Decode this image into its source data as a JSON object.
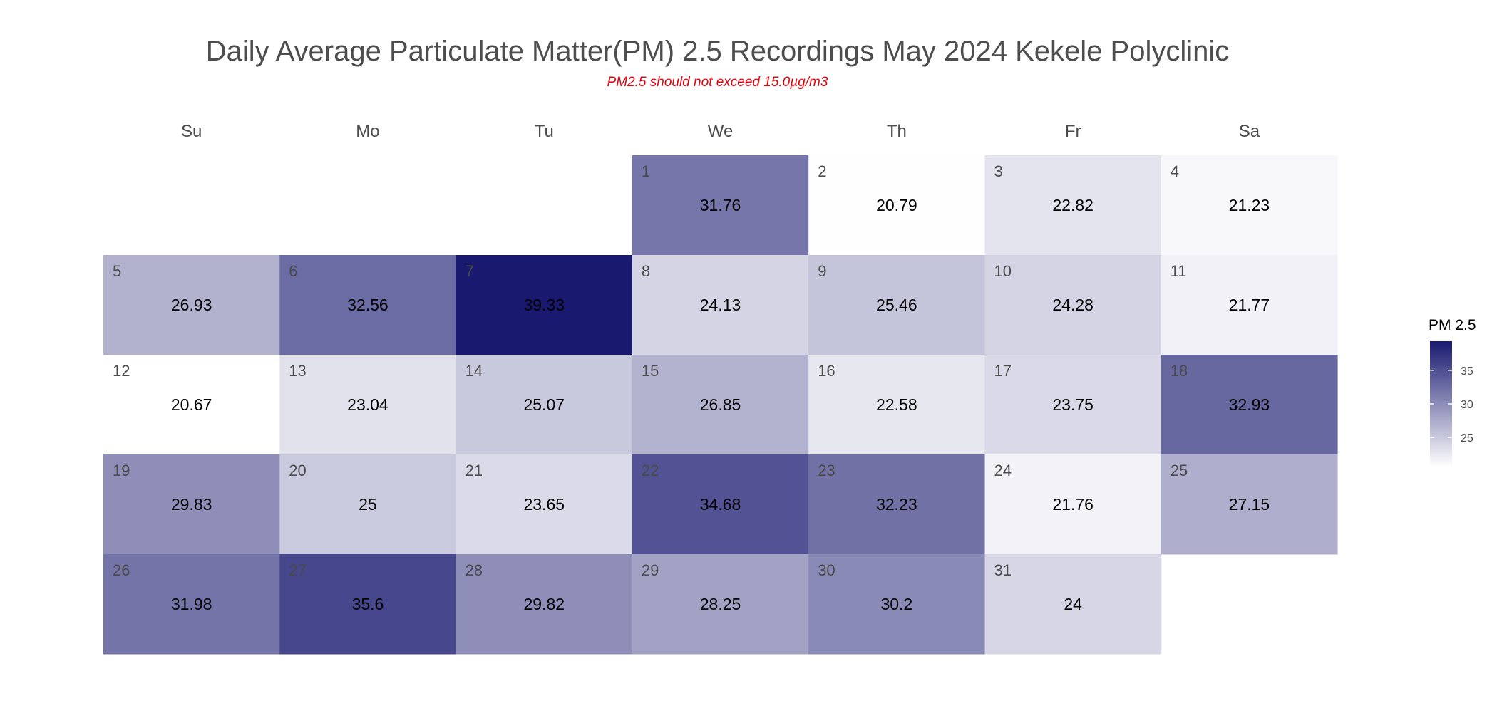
{
  "chart_data": {
    "type": "heatmap",
    "title": "Daily Average Particulate Matter(PM) 2.5 Recordings May 2024 Kekele Polyclinic",
    "subtitle": "PM2.5 should not exceed 15.0µg/m3",
    "weekdays": [
      "Su",
      "Mo",
      "Tu",
      "We",
      "Th",
      "Fr",
      "Sa"
    ],
    "first_weekday_index": 3,
    "days": [
      1,
      2,
      3,
      4,
      5,
      6,
      7,
      8,
      9,
      10,
      11,
      12,
      13,
      14,
      15,
      16,
      17,
      18,
      19,
      20,
      21,
      22,
      23,
      24,
      25,
      26,
      27,
      28,
      29,
      30,
      31
    ],
    "values": [
      31.76,
      20.79,
      22.82,
      21.23,
      26.93,
      32.56,
      39.33,
      24.13,
      25.46,
      24.28,
      21.77,
      20.67,
      23.04,
      25.07,
      26.85,
      22.58,
      23.75,
      32.93,
      29.83,
      25,
      23.65,
      34.68,
      32.23,
      21.76,
      27.15,
      31.98,
      35.6,
      29.82,
      28.25,
      30.2,
      24
    ],
    "value_labels": [
      "31.76",
      "20.79",
      "22.82",
      "21.23",
      "26.93",
      "32.56",
      "39.33",
      "24.13",
      "25.46",
      "24.28",
      "21.77",
      "20.67",
      "23.04",
      "25.07",
      "26.85",
      "22.58",
      "23.75",
      "32.93",
      "29.83",
      "25",
      "23.65",
      "34.68",
      "32.23",
      "21.76",
      "27.15",
      "31.98",
      "35.6",
      "29.82",
      "28.25",
      "30.2",
      "24"
    ],
    "legend": {
      "title": "PM 2.5",
      "ticks": [
        25,
        30,
        35
      ],
      "range": [
        20.67,
        39.33
      ],
      "low_color": "#ffffff",
      "high_color": "#191970"
    }
  }
}
